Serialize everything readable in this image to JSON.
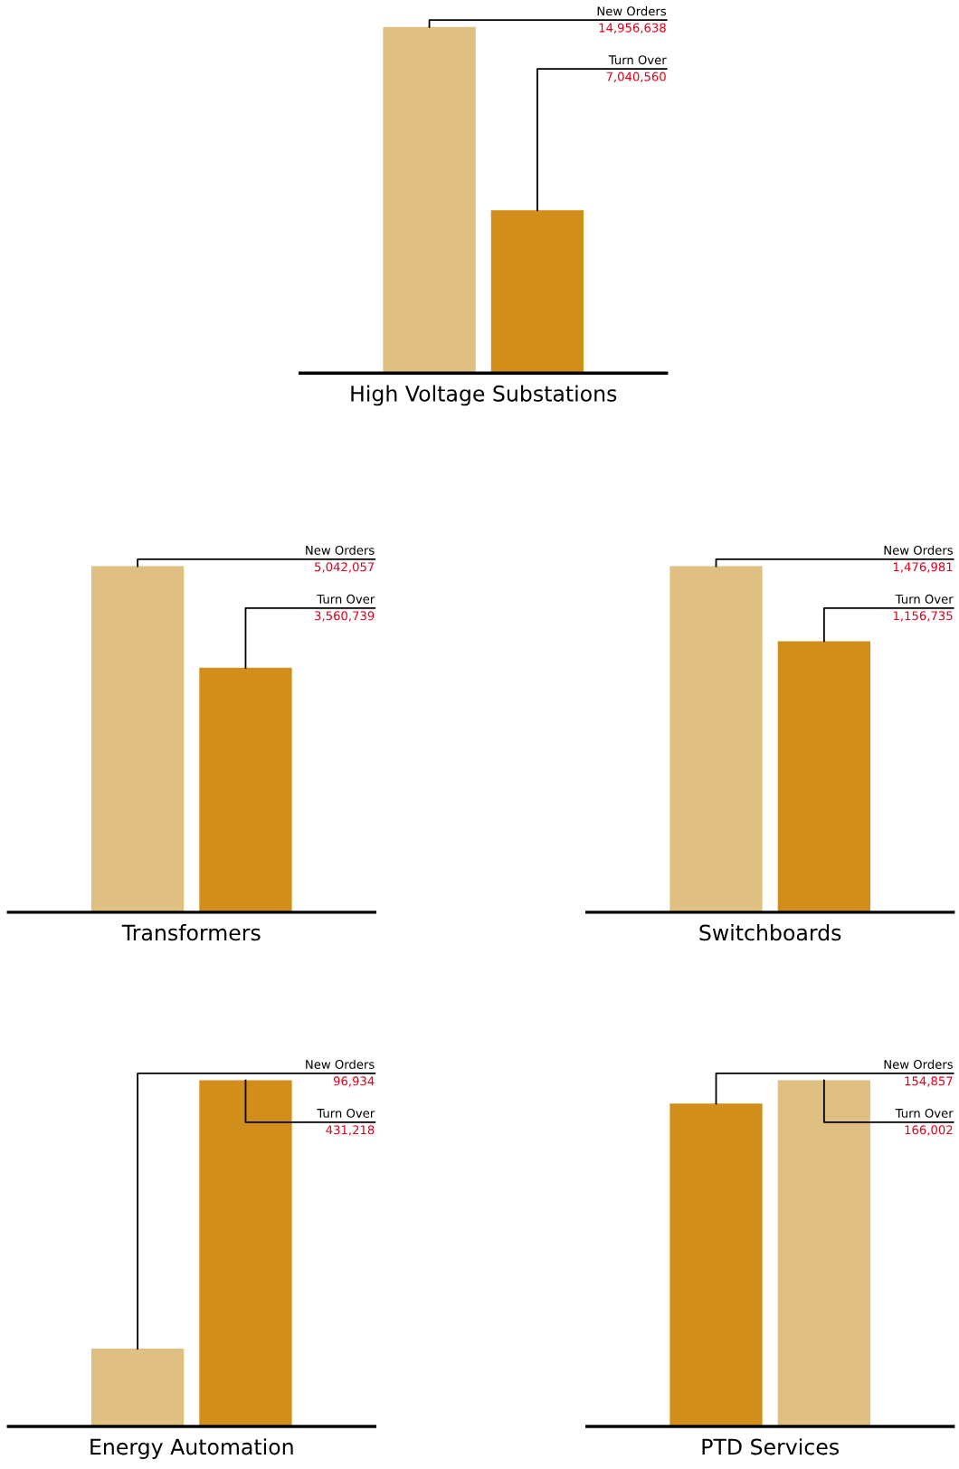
{
  "chart_data": [
    {
      "type": "bar",
      "xlabel": "High Voltage Substations",
      "categories": [
        null
      ],
      "legend": false,
      "series": [
        {
          "name": "New Orders",
          "color": "#dfbf82",
          "values": [
            14956638
          ],
          "value_labels": [
            "14,956,638"
          ]
        },
        {
          "name": "Turn Over",
          "color": "#d18e1a",
          "values": [
            7040560
          ],
          "value_labels": [
            "7,040,560"
          ]
        }
      ]
    },
    {
      "type": "bar",
      "xlabel": "Transformers",
      "categories": [
        null
      ],
      "legend": false,
      "series": [
        {
          "name": "New Orders",
          "color": "#dfbf82",
          "values": [
            5042057
          ],
          "value_labels": [
            "5,042,057"
          ]
        },
        {
          "name": "Turn Over",
          "color": "#d18e1a",
          "values": [
            3560739
          ],
          "value_labels": [
            "3,560,739"
          ]
        }
      ]
    },
    {
      "type": "bar",
      "xlabel": "Switchboards",
      "categories": [
        null
      ],
      "legend": false,
      "series": [
        {
          "name": "New Orders",
          "color": "#dfbf82",
          "values": [
            1476981
          ],
          "value_labels": [
            "1,476,981"
          ]
        },
        {
          "name": "Turn Over",
          "color": "#d18e1a",
          "values": [
            1156735
          ],
          "value_labels": [
            "1,156,735"
          ]
        }
      ]
    },
    {
      "type": "bar",
      "xlabel": "Energy Automation",
      "categories": [
        null
      ],
      "legend": false,
      "series": [
        {
          "name": "New Orders",
          "color": "#dfbf82",
          "values": [
            96934
          ],
          "value_labels": [
            "96,934"
          ]
        },
        {
          "name": "Turn Over",
          "color": "#d18e1a",
          "values": [
            431218
          ],
          "value_labels": [
            "431,218"
          ]
        }
      ]
    },
    {
      "type": "bar",
      "xlabel": "PTD Services",
      "categories": [
        null
      ],
      "legend": false,
      "series": [
        {
          "name": "New Orders",
          "color": "#d18e1a",
          "values": [
            154857
          ],
          "value_labels": [
            "154,857"
          ]
        },
        {
          "name": "Turn Over",
          "color": "#dfbf82",
          "values": [
            166002
          ],
          "value_labels": [
            "166,002"
          ]
        }
      ]
    }
  ]
}
